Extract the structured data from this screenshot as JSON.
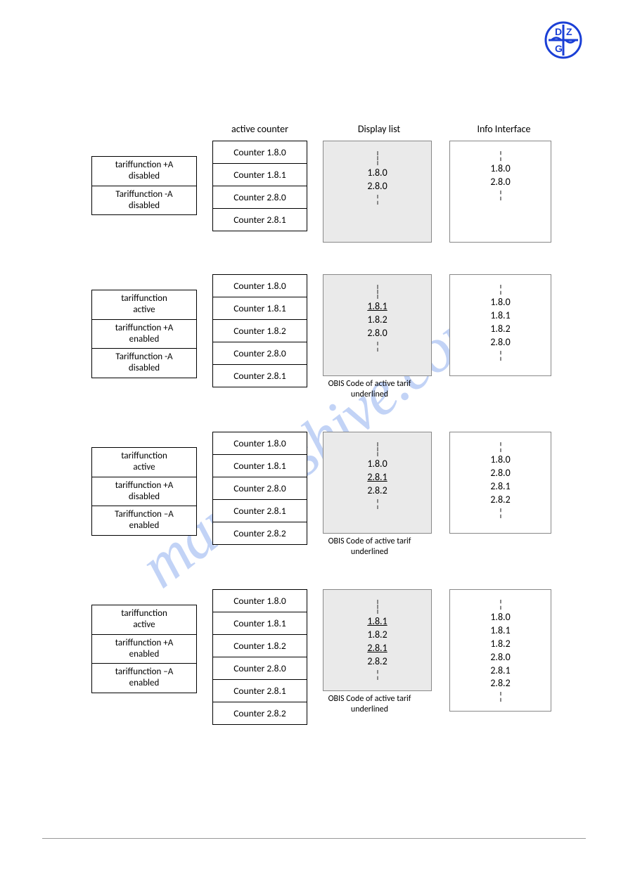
{
  "watermark_text": "manualshive.com",
  "headers": {
    "active_counter": "active counter",
    "display_list": "Display list",
    "info_interface": "Info Interface"
  },
  "caption": "OBIS Code of active tarif\nunderlined",
  "rows": [
    {
      "left": [
        "tariffunction +A\ndisabled",
        "Tariffunction -A\ndisabled"
      ],
      "counters": [
        "Counter 1.8.0",
        "Counter 1.8.1",
        "Counter 2.8.0",
        "Counter 2.8.1"
      ],
      "display": [
        "1.8.0",
        "2.8.0"
      ],
      "display_underlined": [],
      "info": [
        "1.8.0",
        "2.8.0"
      ],
      "show_caption": false
    },
    {
      "left": [
        "tariffunction\nactive",
        "tariffunction +A\nenabled",
        "Tariffunction -A\ndisabled"
      ],
      "counters": [
        "Counter 1.8.0",
        "Counter 1.8.1",
        "Counter 1.8.2",
        "Counter 2.8.0",
        "Counter 2.8.1"
      ],
      "display": [
        "1.8.1",
        "1.8.2",
        "2.8.0"
      ],
      "display_underlined": [
        0
      ],
      "info": [
        "1.8.0",
        "1.8.1",
        "1.8.2",
        "2.8.0"
      ],
      "show_caption": true
    },
    {
      "left": [
        "tariffunction\nactive",
        "tariffunction +A\ndisabled",
        "Tariffunction –A\nenabled"
      ],
      "counters": [
        "Counter 1.8.0",
        "Counter 1.8.1",
        "Counter 2.8.0",
        "Counter 2.8.1",
        "Counter 2.8.2"
      ],
      "display": [
        "1.8.0",
        "2.8.1",
        "2.8.2"
      ],
      "display_underlined": [
        1
      ],
      "info": [
        "1.8.0",
        "2.8.0",
        "2.8.1",
        "2.8.2"
      ],
      "show_caption": true
    },
    {
      "left": [
        "tariffunction\nactive",
        "tariffunction +A\nenabled",
        "tariffunction –A\nenabled"
      ],
      "counters": [
        "Counter 1.8.0",
        "Counter 1.8.1",
        "Counter 1.8.2",
        "Counter 2.8.0",
        "Counter 2.8.1",
        "Counter 2.8.2"
      ],
      "display": [
        "1.8.1",
        "1.8.2",
        "2.8.1",
        "2.8.2"
      ],
      "display_underlined": [
        0,
        2
      ],
      "info": [
        "1.8.0",
        "1.8.1",
        "1.8.2",
        "2.8.0",
        "2.8.1",
        "2.8.2"
      ],
      "show_caption": true
    }
  ],
  "logo": {
    "stroke": "#1a3fd6"
  }
}
